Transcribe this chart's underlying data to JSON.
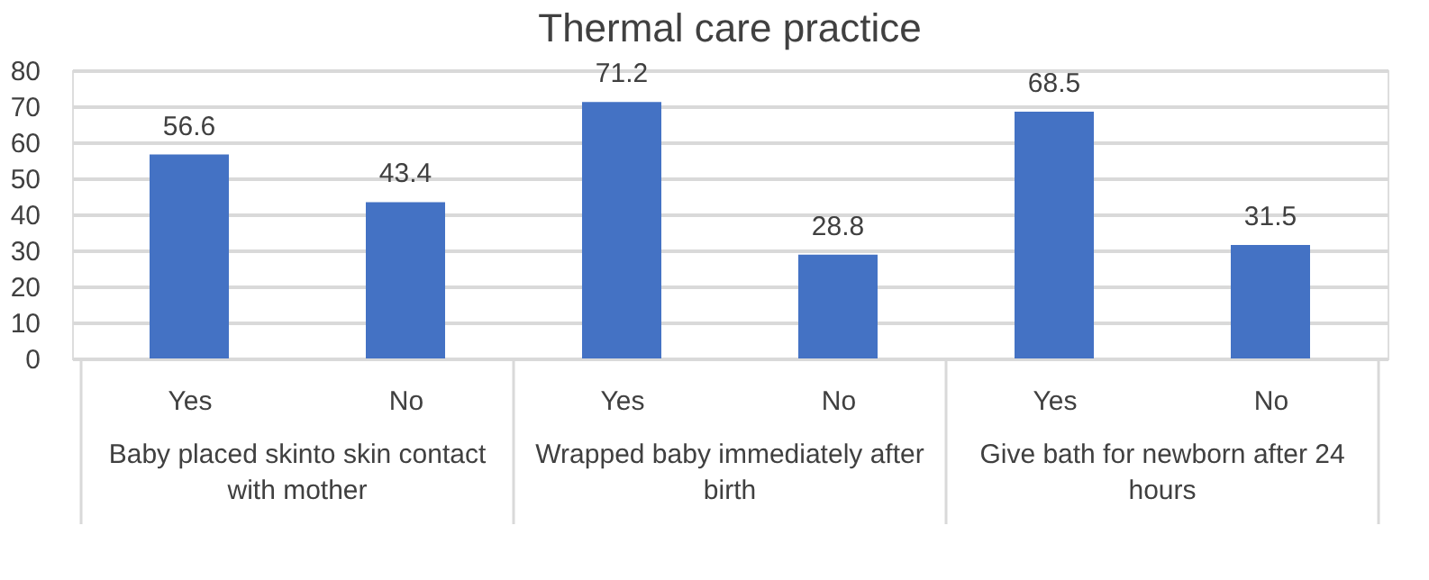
{
  "chart_data": {
    "type": "bar",
    "title": "Thermal care practice",
    "categories": [
      "Yes",
      "No",
      "Yes",
      "No",
      "Yes",
      "No"
    ],
    "values": [
      56.6,
      43.4,
      71.2,
      28.8,
      68.5,
      31.5
    ],
    "color": "#4472c4",
    "data_labels": true,
    "ylim": [
      0,
      80
    ],
    "yticks": [
      0,
      10,
      20,
      30,
      40,
      50,
      60,
      70,
      80
    ],
    "grid": "y",
    "annotations": [
      "Baby placed skinto skin contact with mother",
      "Wrapped baby immediately after birth",
      "Give bath for newborn after 24 hours"
    ]
  }
}
